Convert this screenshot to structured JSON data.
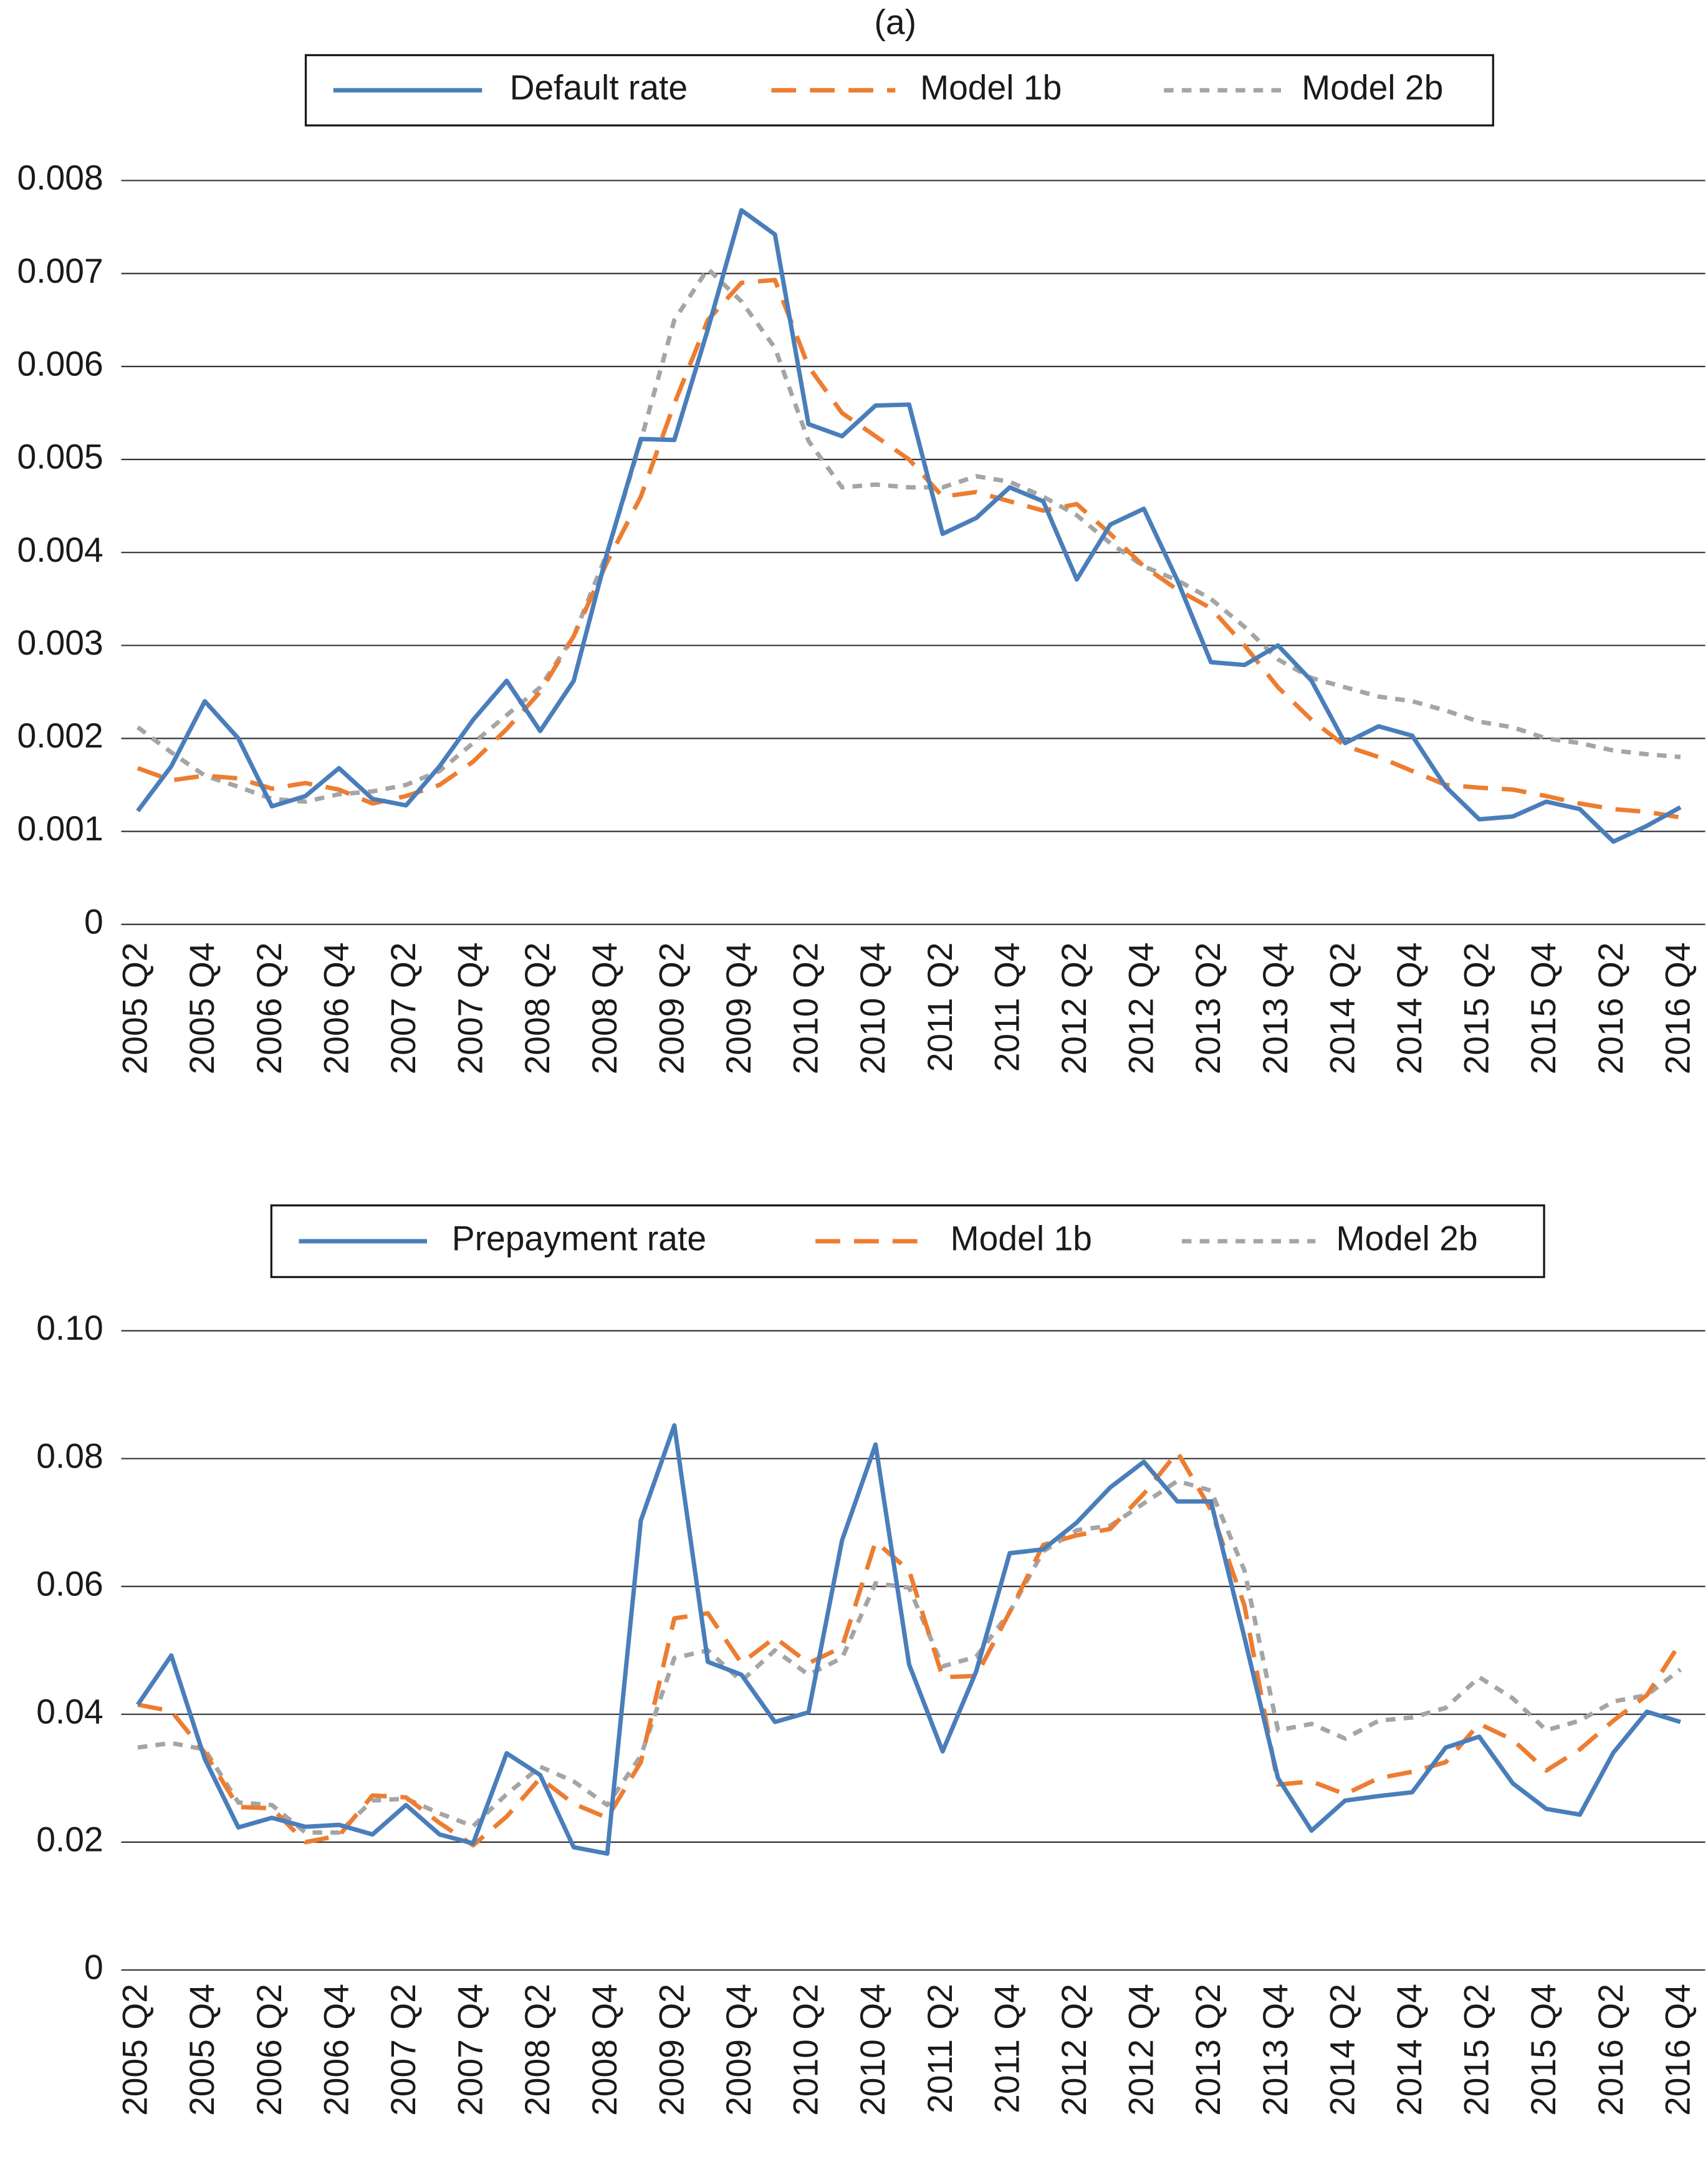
{
  "chart_data": [
    {
      "type": "line",
      "title": "(a)",
      "categories": [
        "2005 Q2",
        null,
        "2005 Q4",
        null,
        "2006 Q2",
        null,
        "2006 Q4",
        null,
        "2007 Q2",
        null,
        "2007 Q4",
        null,
        "2008 Q2",
        null,
        "2008 Q4",
        null,
        "2009 Q2",
        null,
        "2009 Q4",
        null,
        "2010 Q2",
        null,
        "2010 Q4",
        null,
        "2011 Q2",
        null,
        "2011 Q4",
        null,
        "2012 Q2",
        null,
        "2012 Q4",
        null,
        "2013 Q2",
        null,
        "2013 Q4",
        null,
        "2014 Q2",
        null,
        "2014 Q4",
        null,
        "2015 Q2",
        null,
        "2015 Q4",
        null,
        "2016 Q2",
        null,
        "2016 Q4"
      ],
      "series": [
        {
          "name": "Default rate",
          "color": "#4a7ebb",
          "dash": "solid",
          "values": [
            0.00122,
            0.0017,
            0.0024,
            0.002,
            0.00127,
            0.00138,
            0.00168,
            0.00135,
            0.00128,
            0.0017,
            0.0022,
            0.00262,
            0.00208,
            0.00262,
            0.004,
            0.00522,
            0.00521,
            0.0064,
            0.00768,
            0.00742,
            0.00538,
            0.00525,
            0.00558,
            0.00559,
            0.0042,
            0.00437,
            0.0047,
            0.00455,
            0.00371,
            0.0043,
            0.00447,
            0.0037,
            0.00282,
            0.00279,
            0.003,
            0.00262,
            0.00195,
            0.00213,
            0.00203,
            0.00148,
            0.00113,
            0.00116,
            0.00132,
            0.00124,
            0.00089,
            0.00106,
            0.00126
          ]
        },
        {
          "name": "Model 1b",
          "color": "#ed7d31",
          "dash": "dashed",
          "values": [
            0.00168,
            0.00155,
            0.0016,
            0.00157,
            0.00146,
            0.00152,
            0.00145,
            0.0013,
            0.00138,
            0.0015,
            0.00175,
            0.0021,
            0.0025,
            0.0031,
            0.0039,
            0.0046,
            0.0056,
            0.0065,
            0.0069,
            0.00693,
            0.006,
            0.0055,
            0.00525,
            0.005,
            0.0046,
            0.00465,
            0.00455,
            0.00445,
            0.00452,
            0.0042,
            0.00385,
            0.0036,
            0.0034,
            0.003,
            0.00255,
            0.0022,
            0.00192,
            0.0018,
            0.00165,
            0.0015,
            0.00147,
            0.00145,
            0.00138,
            0.0013,
            0.00124,
            0.00121,
            0.00115
          ]
        },
        {
          "name": "Model 2b",
          "color": "#a5a5a5",
          "dash": "dotted",
          "values": [
            0.00212,
            0.00185,
            0.0016,
            0.00148,
            0.00135,
            0.00132,
            0.0014,
            0.00143,
            0.0015,
            0.00165,
            0.00195,
            0.00225,
            0.00255,
            0.0031,
            0.004,
            0.0052,
            0.0065,
            0.00705,
            0.0067,
            0.0062,
            0.0052,
            0.0047,
            0.00473,
            0.0047,
            0.0047,
            0.00482,
            0.00476,
            0.0046,
            0.0044,
            0.0041,
            0.00385,
            0.0037,
            0.0035,
            0.0032,
            0.00285,
            0.00265,
            0.00255,
            0.00245,
            0.0024,
            0.0023,
            0.00218,
            0.00212,
            0.002,
            0.00195,
            0.00187,
            0.00183,
            0.0018
          ]
        }
      ],
      "ylim": [
        0,
        0.008
      ],
      "yticks": [
        0,
        0.001,
        0.002,
        0.003,
        0.004,
        0.005,
        0.006,
        0.007,
        0.008
      ],
      "grid": true,
      "legend": "top"
    },
    {
      "type": "line",
      "categories": [
        "2005 Q2",
        null,
        "2005 Q4",
        null,
        "2006 Q2",
        null,
        "2006 Q4",
        null,
        "2007 Q2",
        null,
        "2007 Q4",
        null,
        "2008 Q2",
        null,
        "2008 Q4",
        null,
        "2009 Q2",
        null,
        "2009 Q4",
        null,
        "2010 Q2",
        null,
        "2010 Q4",
        null,
        "2011 Q2",
        null,
        "2011 Q4",
        null,
        "2012 Q2",
        null,
        "2012 Q4",
        null,
        "2013 Q2",
        null,
        "2013 Q4",
        null,
        "2014 Q2",
        null,
        "2014 Q4",
        null,
        "2015 Q2",
        null,
        "2015 Q4",
        null,
        "2016 Q2",
        null,
        "2016 Q4"
      ],
      "series": [
        {
          "name": "Prepayment rate",
          "color": "#4a7ebb",
          "dash": "solid",
          "values": [
            0.0415,
            0.0492,
            0.033,
            0.0223,
            0.0238,
            0.0224,
            0.0227,
            0.0212,
            0.0258,
            0.0212,
            0.0198,
            0.0339,
            0.0305,
            0.0192,
            0.0182,
            0.0703,
            0.0852,
            0.0482,
            0.0462,
            0.0388,
            0.0403,
            0.0672,
            0.0822,
            0.0478,
            0.0342,
            0.0467,
            0.0652,
            0.0658,
            0.07,
            0.0755,
            0.0795,
            0.0733,
            0.0733,
            0.052,
            0.03,
            0.0218,
            0.0265,
            0.0272,
            0.0278,
            0.0348,
            0.0365,
            0.0292,
            0.0252,
            0.0243,
            0.034,
            0.0404,
            0.0388
          ]
        },
        {
          "name": "Model 1b",
          "color": "#ed7d31",
          "dash": "dashed",
          "values": [
            0.0415,
            0.0405,
            0.034,
            0.0255,
            0.0253,
            0.02,
            0.021,
            0.0273,
            0.027,
            0.023,
            0.0195,
            0.024,
            0.03,
            0.026,
            0.0238,
            0.0325,
            0.055,
            0.0558,
            0.048,
            0.052,
            0.048,
            0.0505,
            0.067,
            0.0625,
            0.0458,
            0.046,
            0.056,
            0.0665,
            0.068,
            0.069,
            0.0745,
            0.081,
            0.072,
            0.057,
            0.029,
            0.0295,
            0.0275,
            0.03,
            0.031,
            0.0325,
            0.0385,
            0.036,
            0.0312,
            0.0345,
            0.039,
            0.043,
            0.0512
          ]
        },
        {
          "name": "Model 2b",
          "color": "#a5a5a5",
          "dash": "dotted",
          "values": [
            0.0348,
            0.0355,
            0.0345,
            0.0262,
            0.0258,
            0.0215,
            0.0215,
            0.0265,
            0.0268,
            0.0245,
            0.0225,
            0.0275,
            0.0318,
            0.0295,
            0.0258,
            0.0335,
            0.0488,
            0.05,
            0.0452,
            0.05,
            0.0462,
            0.0488,
            0.0605,
            0.0598,
            0.0475,
            0.049,
            0.056,
            0.0655,
            0.0688,
            0.0695,
            0.073,
            0.0765,
            0.075,
            0.0625,
            0.0375,
            0.0385,
            0.0362,
            0.039,
            0.0395,
            0.041,
            0.0458,
            0.0425,
            0.0375,
            0.039,
            0.042,
            0.043,
            0.047
          ]
        }
      ],
      "ylim": [
        0,
        0.1
      ],
      "yticks": [
        0,
        0.02,
        0.04,
        0.06,
        0.08,
        {
          "value": 0.1,
          "label": "0.10"
        }
      ],
      "grid": true,
      "legend": "top"
    }
  ]
}
